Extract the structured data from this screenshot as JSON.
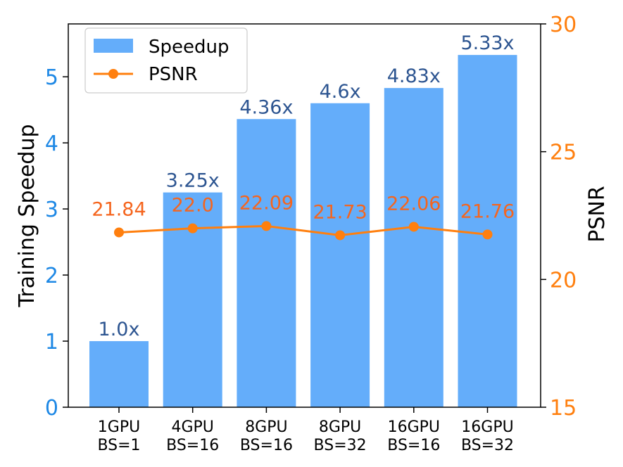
{
  "chart_data": {
    "type": "bar",
    "categories": [
      [
        "1GPU",
        "BS=1"
      ],
      [
        "4GPU",
        "BS=16"
      ],
      [
        "8GPU",
        "BS=16"
      ],
      [
        "8GPU",
        "BS=32"
      ],
      [
        "16GPU",
        "BS=16"
      ],
      [
        "16GPU",
        "BS=32"
      ]
    ],
    "series": [
      {
        "name": "Speedup",
        "type": "bar",
        "axis": "left",
        "values": [
          1.0,
          3.25,
          4.36,
          4.6,
          4.83,
          5.33
        ],
        "labels": [
          "1.0x",
          "3.25x",
          "4.36x",
          "4.6x",
          "4.83x",
          "5.33x"
        ],
        "color": "#64adfa",
        "label_color": "#2d5591"
      },
      {
        "name": "PSNR",
        "type": "line",
        "axis": "right",
        "values": [
          21.84,
          22.0,
          22.09,
          21.73,
          22.06,
          21.76
        ],
        "labels": [
          "21.84",
          "22.0",
          "22.09",
          "21.73",
          "22.06",
          "21.76"
        ],
        "color": "#ff7f0e",
        "label_color": "#f5651e"
      }
    ],
    "ylabel": "Training Speedup",
    "ylim": [
      0,
      5.8
    ],
    "yticks": [
      0,
      1,
      2,
      3,
      4,
      5
    ],
    "ytick_color": "#1e88e5",
    "y2label": "PSNR",
    "y2lim": [
      15,
      30
    ],
    "y2ticks": [
      15,
      20,
      25,
      30
    ],
    "y2tick_color": "#ff7f0e",
    "legend": {
      "position": "upper-left",
      "entries": [
        "Speedup",
        "PSNR"
      ]
    },
    "grid": false
  }
}
